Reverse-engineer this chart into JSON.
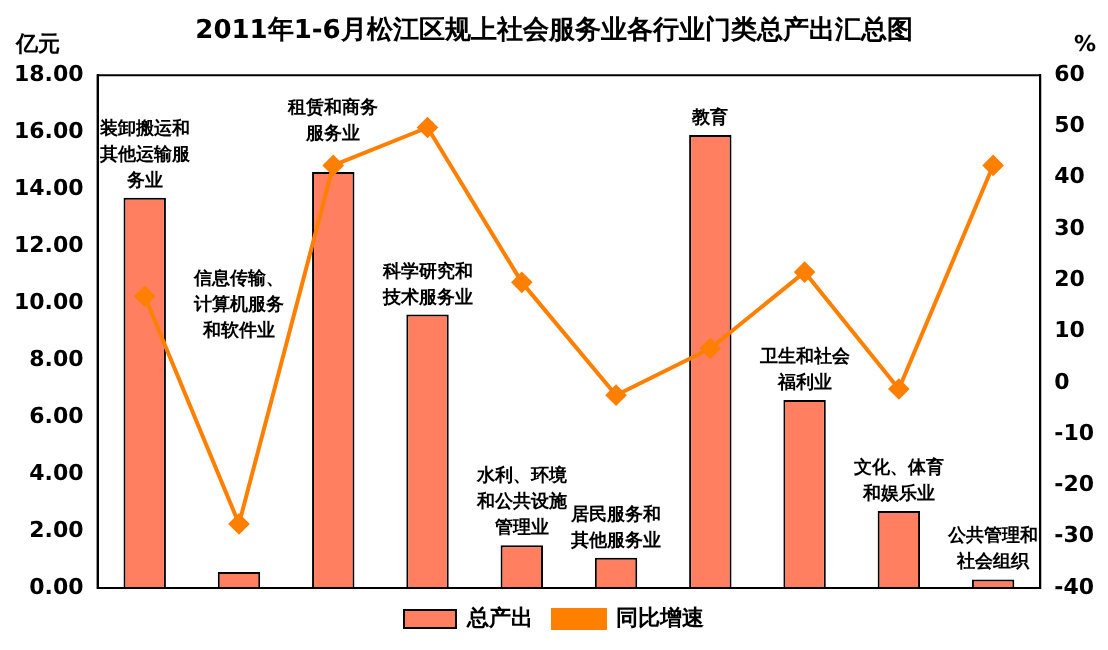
{
  "chart_data": {
    "type": "bar",
    "title": "2011年1-6月松江区规上社会服务业各行业门类总产出汇总图",
    "ylabel": "亿元",
    "y2label": "%",
    "categories": [
      "装卸搬运和其他运输服务业",
      "信息传输、计算机服务和软件业",
      "租赁和商务服务业",
      "科学研究和技术服务业",
      "水利、环境和公共设施管理业",
      "居民服务和其他服务业",
      "教育",
      "卫生和社会福利业",
      "文化、体育和娱乐业",
      "公共管理和社会组织"
    ],
    "series": [
      {
        "name": "总产出",
        "color": "#ff7f60",
        "values": [
          13.7,
          0.56,
          14.6,
          9.6,
          1.5,
          1.06,
          15.9,
          6.6,
          2.7,
          0.3
        ]
      },
      {
        "name": "同比增速",
        "type": "line",
        "axis": "y2",
        "color": "#ff7f00",
        "marker": "diamond",
        "values": [
          16.9,
          -27.5,
          42.4,
          49.8,
          19.6,
          -2.4,
          6.7,
          21.6,
          -1.2,
          42.4
        ]
      }
    ],
    "ylim": [
      0,
      18
    ],
    "yticks": [
      {
        "value": 0,
        "label": "0.00"
      },
      {
        "value": 2,
        "label": "2.00"
      },
      {
        "value": 4,
        "label": "4.00"
      },
      {
        "value": 6,
        "label": "6.00"
      },
      {
        "value": 8,
        "label": "8.00"
      },
      {
        "value": 10,
        "label": "10.00"
      },
      {
        "value": 12,
        "label": "12.00"
      },
      {
        "value": 14,
        "label": "14.00"
      },
      {
        "value": 16,
        "label": "16.00"
      },
      {
        "value": 18,
        "label": "18.00"
      }
    ],
    "y2lim": [
      -40,
      60
    ],
    "y2ticks": [
      -40,
      -30,
      -20,
      -10,
      0,
      10,
      20,
      30,
      40,
      50,
      60
    ],
    "grid": false,
    "legend": "bottom"
  }
}
